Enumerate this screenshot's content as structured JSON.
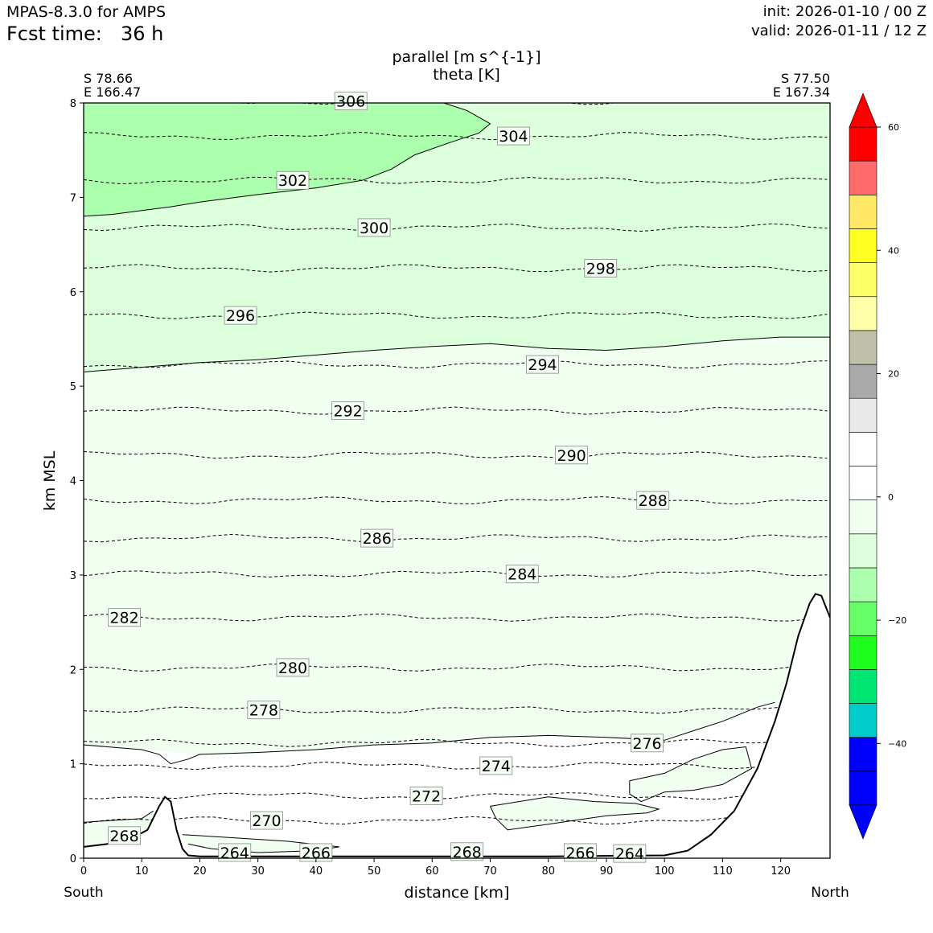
{
  "header": {
    "model": "MPAS-8.3.0 for AMPS",
    "fcst_label": "Fcst time:",
    "fcst_value": "36 h",
    "init": "init: 2026-01-10 / 00 Z",
    "valid": "valid: 2026-01-11 / 12 Z"
  },
  "endpoints": {
    "left_lat": "S 78.66",
    "left_lon": "E 166.47",
    "right_lat": "S 77.50",
    "right_lon": "E 167.34",
    "left_dir": "South",
    "right_dir": "North"
  },
  "chart_data": {
    "type": "cross-section",
    "title_line1": "parallel [m s^{-1}]",
    "title_line2": "theta [K]",
    "xlabel": "distance [km]",
    "ylabel": "km MSL",
    "xlim": [
      0,
      128.5
    ],
    "ylim": [
      0,
      8
    ],
    "x_ticks": [
      0,
      10,
      20,
      30,
      40,
      50,
      60,
      70,
      80,
      90,
      100,
      110,
      120
    ],
    "y_ticks": [
      0,
      1,
      2,
      3,
      4,
      5,
      6,
      7,
      8
    ],
    "colorbar": {
      "min": -50,
      "max": 60,
      "ticks": [
        60,
        40,
        20,
        0,
        -20,
        -40
      ],
      "colors": [
        "#0000ff",
        "#0000ff",
        "#00cccc",
        "#00e673",
        "#1eff1e",
        "#66ff66",
        "#acffac",
        "#dcffdc",
        "#f0fff0",
        "#ffffff",
        "#ffffff",
        "#e8e8e8",
        "#aaaaaa",
        "#c0c0a8",
        "#ffffaa",
        "#ffff66",
        "#ffff22",
        "#ffe866",
        "#ff6b6b",
        "#ff0000"
      ],
      "extend_low_color": "#0000ff",
      "extend_high_color": "#ff0000"
    },
    "wind_regions": [
      {
        "color": "#acffac",
        "points": [
          [
            0,
            6.8
          ],
          [
            5,
            6.82
          ],
          [
            10,
            6.86
          ],
          [
            15,
            6.9
          ],
          [
            20,
            6.95
          ],
          [
            30,
            7.03
          ],
          [
            40,
            7.1
          ],
          [
            48,
            7.18
          ],
          [
            53,
            7.3
          ],
          [
            57,
            7.45
          ],
          [
            63,
            7.58
          ],
          [
            68,
            7.68
          ],
          [
            70,
            7.78
          ],
          [
            66,
            7.92
          ],
          [
            62,
            8
          ],
          [
            0,
            8
          ]
        ]
      },
      {
        "color": "#dcffdc",
        "points": [
          [
            0,
            5.15
          ],
          [
            10,
            5.2
          ],
          [
            20,
            5.25
          ],
          [
            30,
            5.28
          ],
          [
            40,
            5.33
          ],
          [
            50,
            5.38
          ],
          [
            60,
            5.42
          ],
          [
            70,
            5.45
          ],
          [
            80,
            5.4
          ],
          [
            90,
            5.38
          ],
          [
            100,
            5.42
          ],
          [
            110,
            5.48
          ],
          [
            120,
            5.52
          ],
          [
            128.5,
            5.52
          ],
          [
            128.5,
            8
          ],
          [
            62,
            8
          ],
          [
            66,
            7.92
          ],
          [
            70,
            7.78
          ],
          [
            68,
            7.68
          ],
          [
            63,
            7.58
          ],
          [
            57,
            7.45
          ],
          [
            53,
            7.3
          ],
          [
            48,
            7.18
          ],
          [
            40,
            7.1
          ],
          [
            30,
            7.03
          ],
          [
            20,
            6.95
          ],
          [
            15,
            6.9
          ],
          [
            10,
            6.86
          ],
          [
            5,
            6.82
          ],
          [
            0,
            6.8
          ]
        ]
      },
      {
        "color": "#f0fff0",
        "points": [
          [
            0,
            1.2
          ],
          [
            10,
            1.15
          ],
          [
            20,
            1.1
          ],
          [
            30,
            1.12
          ],
          [
            40,
            1.15
          ],
          [
            50,
            1.2
          ],
          [
            60,
            1.22
          ],
          [
            70,
            1.28
          ],
          [
            80,
            1.3
          ],
          [
            90,
            1.28
          ],
          [
            100,
            1.25
          ],
          [
            105,
            1.35
          ],
          [
            110,
            1.45
          ],
          [
            116,
            1.6
          ],
          [
            120,
            1.65
          ],
          [
            124,
            2.4
          ],
          [
            126,
            2.8
          ],
          [
            128.5,
            2.6
          ],
          [
            128.5,
            5.52
          ],
          [
            120,
            5.52
          ],
          [
            110,
            5.48
          ],
          [
            100,
            5.42
          ],
          [
            90,
            5.38
          ],
          [
            80,
            5.4
          ],
          [
            70,
            5.45
          ],
          [
            60,
            5.42
          ],
          [
            50,
            5.38
          ],
          [
            40,
            5.33
          ],
          [
            30,
            5.28
          ],
          [
            20,
            5.25
          ],
          [
            10,
            5.2
          ],
          [
            0,
            5.15
          ]
        ]
      },
      {
        "color": "#f0fff0",
        "points": [
          [
            70,
            0.55
          ],
          [
            80,
            0.65
          ],
          [
            88,
            0.6
          ],
          [
            95,
            0.58
          ],
          [
            99,
            0.52
          ],
          [
            97,
            0.48
          ],
          [
            90,
            0.45
          ],
          [
            80,
            0.36
          ],
          [
            73,
            0.3
          ],
          [
            71,
            0.42
          ]
        ]
      },
      {
        "color": "#f0fff0",
        "points": [
          [
            94,
            0.82
          ],
          [
            100,
            0.9
          ],
          [
            105,
            1.05
          ],
          [
            110,
            1.15
          ],
          [
            114,
            1.18
          ],
          [
            115,
            0.95
          ],
          [
            110,
            0.78
          ],
          [
            105,
            0.72
          ],
          [
            100,
            0.7
          ],
          [
            96,
            0.6
          ],
          [
            94,
            0.68
          ]
        ]
      },
      {
        "color": "#f0fff0",
        "points": [
          [
            0,
            0.38
          ],
          [
            5,
            0.4
          ],
          [
            10,
            0.42
          ],
          [
            12,
            0.5
          ],
          [
            13.5,
            0.3
          ],
          [
            12,
            0.2
          ],
          [
            8,
            0.15
          ],
          [
            4,
            0.12
          ],
          [
            0,
            0.12
          ]
        ]
      },
      {
        "color": "#f0fff0",
        "points": [
          [
            17,
            0.25
          ],
          [
            25,
            0.22
          ],
          [
            35,
            0.18
          ],
          [
            44,
            0.12
          ],
          [
            40,
            0.08
          ],
          [
            30,
            0.06
          ],
          [
            22,
            0.1
          ],
          [
            18,
            0.15
          ]
        ]
      }
    ],
    "wind_contour_lines": [
      [
        [
          0,
          6.8
        ],
        [
          5,
          6.82
        ],
        [
          10,
          6.86
        ],
        [
          15,
          6.9
        ],
        [
          20,
          6.95
        ],
        [
          30,
          7.03
        ],
        [
          40,
          7.1
        ],
        [
          48,
          7.18
        ],
        [
          53,
          7.3
        ],
        [
          57,
          7.45
        ],
        [
          63,
          7.58
        ],
        [
          68,
          7.68
        ],
        [
          70,
          7.78
        ],
        [
          66,
          7.92
        ],
        [
          62,
          8
        ]
      ],
      [
        [
          0,
          5.15
        ],
        [
          10,
          5.2
        ],
        [
          20,
          5.25
        ],
        [
          30,
          5.28
        ],
        [
          40,
          5.33
        ],
        [
          50,
          5.38
        ],
        [
          60,
          5.42
        ],
        [
          70,
          5.45
        ],
        [
          80,
          5.4
        ],
        [
          90,
          5.38
        ],
        [
          100,
          5.42
        ],
        [
          110,
          5.48
        ],
        [
          120,
          5.52
        ],
        [
          128.5,
          5.52
        ]
      ],
      [
        [
          0,
          1.2
        ],
        [
          10,
          1.15
        ],
        [
          13,
          1.1
        ],
        [
          15,
          1.0
        ],
        [
          18,
          1.05
        ],
        [
          20,
          1.1
        ],
        [
          30,
          1.12
        ],
        [
          40,
          1.15
        ],
        [
          50,
          1.2
        ],
        [
          60,
          1.22
        ],
        [
          70,
          1.28
        ],
        [
          80,
          1.3
        ],
        [
          90,
          1.28
        ],
        [
          100,
          1.25
        ],
        [
          105,
          1.35
        ],
        [
          110,
          1.45
        ],
        [
          116,
          1.6
        ],
        [
          119,
          1.65
        ]
      ],
      [
        [
          94,
          0.82
        ],
        [
          100,
          0.9
        ],
        [
          105,
          1.05
        ],
        [
          110,
          1.15
        ],
        [
          114,
          1.18
        ],
        [
          115,
          0.95
        ],
        [
          110,
          0.78
        ],
        [
          105,
          0.72
        ],
        [
          100,
          0.7
        ],
        [
          96,
          0.6
        ],
        [
          94,
          0.68
        ],
        [
          94,
          0.82
        ]
      ],
      [
        [
          70,
          0.55
        ],
        [
          80,
          0.65
        ],
        [
          88,
          0.6
        ],
        [
          95,
          0.58
        ],
        [
          99,
          0.52
        ],
        [
          97,
          0.48
        ],
        [
          90,
          0.45
        ],
        [
          80,
          0.36
        ],
        [
          73,
          0.3
        ],
        [
          71,
          0.42
        ],
        [
          70,
          0.55
        ]
      ],
      [
        [
          0,
          0.38
        ],
        [
          5,
          0.4
        ],
        [
          10,
          0.42
        ],
        [
          12,
          0.5
        ]
      ],
      [
        [
          17,
          0.25
        ],
        [
          25,
          0.22
        ],
        [
          35,
          0.18
        ],
        [
          44,
          0.12
        ],
        [
          40,
          0.08
        ],
        [
          30,
          0.06
        ],
        [
          22,
          0.1
        ],
        [
          18,
          0.15
        ]
      ]
    ],
    "theta_contours": [
      {
        "level": 306,
        "y": 8.02,
        "label_x": 46
      },
      {
        "level": 304,
        "y": 7.65,
        "label_x": 74
      },
      {
        "level": 302,
        "y": 7.18,
        "label_x": 36
      },
      {
        "level": 300,
        "y": 6.68,
        "label_x": 50
      },
      {
        "level": 298,
        "y": 6.25,
        "label_x": 89
      },
      {
        "level": 296,
        "y": 5.75,
        "label_x": 27
      },
      {
        "level": 294,
        "y": 5.23,
        "label_x": 79
      },
      {
        "level": 292,
        "y": 4.74,
        "label_x": 45.5
      },
      {
        "level": 290,
        "y": 4.27,
        "label_x": 84
      },
      {
        "level": 288,
        "y": 3.79,
        "label_x": 98
      },
      {
        "level": 286,
        "y": 3.39,
        "label_x": 50.5
      },
      {
        "level": 284,
        "y": 3.01,
        "label_x": 75.5
      },
      {
        "level": 282,
        "y": 2.55,
        "label_x": 7
      },
      {
        "level": 280,
        "y": 2.02,
        "label_x": 36
      },
      {
        "level": 278,
        "y": 1.57,
        "label_x": 31
      },
      {
        "level": 276,
        "y": 1.22,
        "label_x": 97
      },
      {
        "level": 274,
        "y": 0.98,
        "label_x": 71
      },
      {
        "level": 272,
        "y": 0.66,
        "label_x": 59
      },
      {
        "level": 270,
        "y": 0.4,
        "label_x": 31.5
      },
      {
        "level": 268,
        "y": 0.24,
        "label_x": 7
      },
      {
        "level": 266,
        "y": 0.06,
        "label_x": 40
      },
      {
        "level": 268,
        "y": 0.07,
        "label_x": 66
      },
      {
        "level": 266,
        "y": 0.06,
        "label_x": 85.5
      },
      {
        "level": 264,
        "y": 0.05,
        "label_x": 94
      },
      {
        "level": 264,
        "y": 0.06,
        "label_x": 26
      }
    ],
    "terrain": [
      [
        0,
        0.12
      ],
      [
        4,
        0.15
      ],
      [
        8,
        0.2
      ],
      [
        11,
        0.3
      ],
      [
        13,
        0.55
      ],
      [
        14,
        0.65
      ],
      [
        15,
        0.6
      ],
      [
        16,
        0.3
      ],
      [
        17,
        0.1
      ],
      [
        18,
        0.03
      ],
      [
        20,
        0.02
      ],
      [
        40,
        0.02
      ],
      [
        60,
        0.02
      ],
      [
        80,
        0.02
      ],
      [
        100,
        0.03
      ],
      [
        104,
        0.08
      ],
      [
        108,
        0.25
      ],
      [
        112,
        0.5
      ],
      [
        116,
        0.95
      ],
      [
        119,
        1.45
      ],
      [
        121,
        1.85
      ],
      [
        123,
        2.35
      ],
      [
        125,
        2.7
      ],
      [
        126,
        2.8
      ],
      [
        127,
        2.78
      ],
      [
        128.5,
        2.55
      ]
    ]
  }
}
